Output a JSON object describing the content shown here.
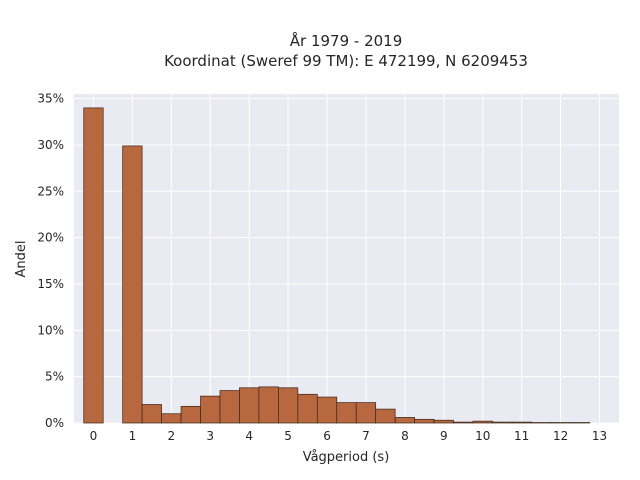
{
  "chart_data": {
    "type": "bar",
    "title_lines": [
      "År 1979 - 2019",
      "Koordinat (Sweref 99 TM): E 472199, N 6209453"
    ],
    "xlabel": "Vågperiod (s)",
    "ylabel": "Andel",
    "x_ticks": [
      0,
      1,
      2,
      3,
      4,
      5,
      6,
      7,
      8,
      9,
      10,
      11,
      12,
      13
    ],
    "y_ticks": [
      0,
      5,
      10,
      15,
      20,
      25,
      30,
      35
    ],
    "y_tick_labels": [
      "0%",
      "5%",
      "10%",
      "15%",
      "20%",
      "25%",
      "30%",
      "35%"
    ],
    "xlim": [
      -0.5,
      13.5
    ],
    "ylim": [
      0,
      35.5
    ],
    "bin_width": 0.5,
    "bins": [
      {
        "x": 0.0,
        "value": 34.0
      },
      {
        "x": 1.0,
        "value": 29.9
      },
      {
        "x": 1.5,
        "value": 2.0
      },
      {
        "x": 2.0,
        "value": 1.0
      },
      {
        "x": 2.5,
        "value": 1.8
      },
      {
        "x": 3.0,
        "value": 2.9
      },
      {
        "x": 3.5,
        "value": 3.5
      },
      {
        "x": 4.0,
        "value": 3.8
      },
      {
        "x": 4.5,
        "value": 3.9
      },
      {
        "x": 5.0,
        "value": 3.8
      },
      {
        "x": 5.5,
        "value": 3.1
      },
      {
        "x": 6.0,
        "value": 2.8
      },
      {
        "x": 6.5,
        "value": 2.2
      },
      {
        "x": 7.0,
        "value": 2.2
      },
      {
        "x": 7.5,
        "value": 1.5
      },
      {
        "x": 8.0,
        "value": 0.6
      },
      {
        "x": 8.5,
        "value": 0.4
      },
      {
        "x": 9.0,
        "value": 0.3
      },
      {
        "x": 9.5,
        "value": 0.1
      },
      {
        "x": 10.0,
        "value": 0.2
      },
      {
        "x": 10.5,
        "value": 0.1
      },
      {
        "x": 11.0,
        "value": 0.1
      },
      {
        "x": 11.5,
        "value": 0.05
      },
      {
        "x": 12.0,
        "value": 0.05
      },
      {
        "x": 12.5,
        "value": 0.05
      }
    ],
    "grid": true,
    "colors": {
      "bar": "#b7683f",
      "bar_edge": "#3a2418",
      "plot_bg": "#eaeaf2",
      "grid": "#ffffff"
    }
  }
}
